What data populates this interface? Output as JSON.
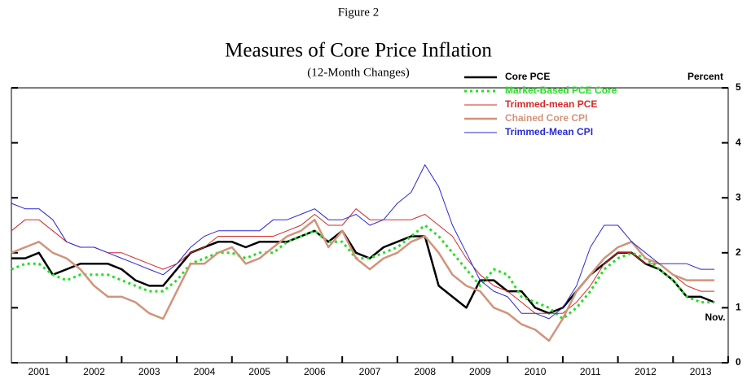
{
  "chart_data": {
    "type": "line",
    "figure_label": "Figure 2",
    "title": "Measures of Core Price Inflation",
    "subtitle": "(12-Month Changes)",
    "y_axis_label": "Percent",
    "annotation": "Nov.",
    "x": [
      2001.0,
      2001.25,
      2001.5,
      2001.75,
      2002.0,
      2002.25,
      2002.5,
      2002.75,
      2003.0,
      2003.25,
      2003.5,
      2003.75,
      2004.0,
      2004.25,
      2004.5,
      2004.75,
      2005.0,
      2005.25,
      2005.5,
      2005.75,
      2006.0,
      2006.25,
      2006.5,
      2006.75,
      2007.0,
      2007.25,
      2007.5,
      2007.75,
      2008.0,
      2008.25,
      2008.5,
      2008.75,
      2009.0,
      2009.25,
      2009.5,
      2009.75,
      2010.0,
      2010.25,
      2010.5,
      2010.75,
      2011.0,
      2011.25,
      2011.5,
      2011.75,
      2012.0,
      2012.25,
      2012.5,
      2012.75,
      2013.0,
      2013.25,
      2013.5,
      2013.75
    ],
    "xlim": [
      2001,
      2014
    ],
    "xticks": [
      {
        "value": 2001.5,
        "label": "2001"
      },
      {
        "value": 2002.5,
        "label": "2002"
      },
      {
        "value": 2003.5,
        "label": "2003"
      },
      {
        "value": 2004.5,
        "label": "2004"
      },
      {
        "value": 2005.5,
        "label": "2005"
      },
      {
        "value": 2006.5,
        "label": "2006"
      },
      {
        "value": 2007.5,
        "label": "2007"
      },
      {
        "value": 2008.5,
        "label": "2008"
      },
      {
        "value": 2009.5,
        "label": "2009"
      },
      {
        "value": 2010.5,
        "label": "2010"
      },
      {
        "value": 2011.5,
        "label": "2011"
      },
      {
        "value": 2012.5,
        "label": "2012"
      },
      {
        "value": 2013.5,
        "label": "2013"
      }
    ],
    "ylim": [
      0,
      5
    ],
    "yticks": [
      0,
      1,
      2,
      3,
      4,
      5
    ],
    "legend": "top-right",
    "series": [
      {
        "name": "Core PCE",
        "color": "#000000",
        "width": 2.5,
        "dash": "solid",
        "values": [
          1.9,
          1.9,
          2.0,
          1.6,
          1.7,
          1.8,
          1.8,
          1.8,
          1.7,
          1.5,
          1.4,
          1.4,
          1.7,
          2.0,
          2.1,
          2.2,
          2.2,
          2.1,
          2.2,
          2.2,
          2.2,
          2.3,
          2.4,
          2.2,
          2.4,
          2.0,
          1.9,
          2.1,
          2.2,
          2.3,
          2.3,
          1.4,
          1.2,
          1.0,
          1.5,
          1.5,
          1.3,
          1.3,
          1.0,
          0.9,
          1.0,
          1.3,
          1.6,
          1.8,
          2.0,
          2.0,
          1.8,
          1.7,
          1.5,
          1.2,
          1.2,
          1.1
        ]
      },
      {
        "name": "Market-Based PCE Core",
        "color": "#22e022",
        "width": 3,
        "dash": "dotted",
        "values": [
          1.7,
          1.8,
          1.8,
          1.6,
          1.5,
          1.6,
          1.6,
          1.6,
          1.5,
          1.4,
          1.3,
          1.3,
          1.5,
          1.8,
          1.9,
          2.0,
          2.0,
          1.9,
          2.0,
          2.0,
          2.2,
          2.3,
          2.4,
          2.2,
          2.2,
          1.9,
          1.9,
          2.0,
          2.1,
          2.3,
          2.5,
          2.3,
          2.0,
          1.7,
          1.4,
          1.7,
          1.6,
          1.2,
          1.1,
          1.0,
          0.8,
          1.0,
          1.3,
          1.7,
          1.9,
          2.0,
          1.9,
          1.7,
          1.5,
          1.2,
          1.1,
          1.1
        ]
      },
      {
        "name": "Trimmed-mean PCE",
        "color": "#d42a2a",
        "width": 1,
        "dash": "solid",
        "values": [
          2.4,
          2.6,
          2.6,
          2.4,
          2.2,
          2.1,
          2.1,
          2.0,
          2.0,
          1.9,
          1.8,
          1.7,
          1.8,
          2.0,
          2.1,
          2.3,
          2.3,
          2.3,
          2.3,
          2.3,
          2.4,
          2.5,
          2.7,
          2.5,
          2.5,
          2.8,
          2.6,
          2.6,
          2.6,
          2.6,
          2.7,
          2.5,
          2.3,
          1.9,
          1.6,
          1.4,
          1.3,
          1.1,
          0.9,
          0.9,
          0.9,
          1.1,
          1.4,
          1.8,
          2.0,
          2.0,
          1.8,
          1.8,
          1.6,
          1.4,
          1.3,
          1.3
        ]
      },
      {
        "name": "Chained Core CPI",
        "color": "#d2937a",
        "width": 2.5,
        "dash": "solid",
        "values": [
          2.0,
          2.1,
          2.2,
          2.0,
          1.9,
          1.7,
          1.4,
          1.2,
          1.2,
          1.1,
          0.9,
          0.8,
          1.3,
          1.8,
          1.8,
          2.0,
          2.1,
          1.8,
          1.9,
          2.1,
          2.3,
          2.4,
          2.6,
          2.1,
          2.4,
          1.9,
          1.7,
          1.9,
          2.0,
          2.2,
          2.3,
          2.0,
          1.6,
          1.4,
          1.3,
          1.0,
          0.9,
          0.7,
          0.6,
          0.4,
          0.8,
          1.3,
          1.6,
          1.9,
          2.1,
          2.2,
          1.9,
          1.8,
          1.6,
          1.5,
          1.5,
          1.5
        ]
      },
      {
        "name": "Trimmed-Mean CPI",
        "color": "#2a2ad4",
        "width": 1,
        "dash": "solid",
        "values": [
          2.9,
          2.8,
          2.8,
          2.6,
          2.2,
          2.1,
          2.1,
          2.0,
          1.9,
          1.8,
          1.7,
          1.6,
          1.8,
          2.1,
          2.3,
          2.4,
          2.4,
          2.4,
          2.4,
          2.6,
          2.6,
          2.7,
          2.8,
          2.6,
          2.6,
          2.7,
          2.5,
          2.6,
          2.9,
          3.1,
          3.6,
          3.2,
          2.5,
          2.0,
          1.5,
          1.3,
          1.2,
          0.9,
          0.9,
          0.8,
          1.0,
          1.4,
          2.1,
          2.5,
          2.5,
          2.2,
          2.0,
          1.8,
          1.8,
          1.8,
          1.7,
          1.7
        ]
      }
    ]
  }
}
